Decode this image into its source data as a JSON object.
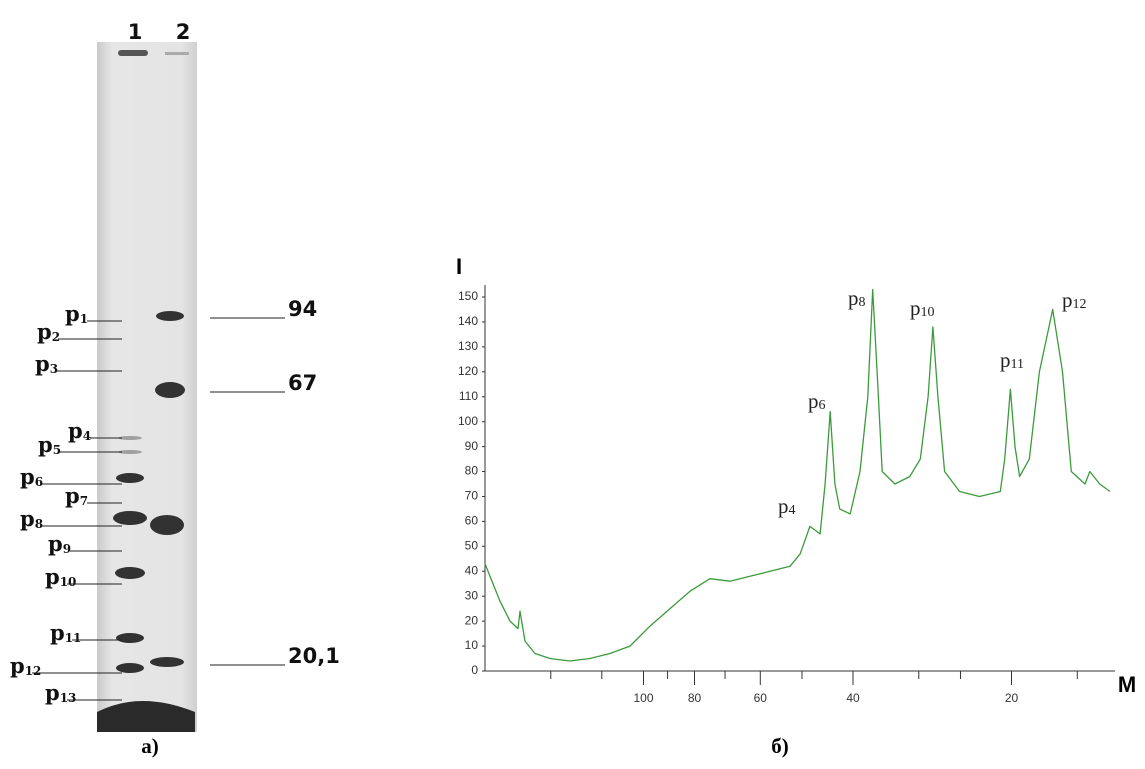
{
  "gel": {
    "lane_labels": [
      "1",
      "2"
    ],
    "band_labels": [
      {
        "letter": "p",
        "index": "1"
      },
      {
        "letter": "p",
        "index": "2"
      },
      {
        "letter": "p",
        "index": "3"
      },
      {
        "letter": "p",
        "index": "4"
      },
      {
        "letter": "p",
        "index": "5"
      },
      {
        "letter": "p",
        "index": "6"
      },
      {
        "letter": "p",
        "index": "7"
      },
      {
        "letter": "p",
        "index": "8"
      },
      {
        "letter": "p",
        "index": "9"
      },
      {
        "letter": "p",
        "index": "10"
      },
      {
        "letter": "p",
        "index": "11"
      },
      {
        "letter": "p",
        "index": "12"
      },
      {
        "letter": "p",
        "index": "13"
      }
    ],
    "marker_labels": [
      "94",
      "67",
      "20,1"
    ],
    "caption": "а)"
  },
  "chart_data": {
    "type": "line",
    "y_label": "I",
    "x_label": "M",
    "caption": "б)",
    "log_x": true,
    "x": [
      200,
      187.3,
      179.3,
      173.1,
      171.6,
      167.9,
      160.7,
      150.5,
      137.9,
      126.4,
      115.8,
      106.1,
      97.2,
      89.1,
      81.6,
      74.8,
      68.5,
      62.8,
      57.5,
      52.7,
      50.4,
      48.3,
      46.2,
      45.2,
      44.2,
      43.3,
      42.4,
      40.5,
      38.8,
      37.5,
      36.7,
      36.0,
      35.2,
      33.3,
      31.2,
      29.8,
      28.8,
      28.2,
      27.6,
      26.8,
      25.1,
      23.0,
      21.0,
      20.6,
      20.1,
      19.7,
      19.3,
      18.5,
      17.7,
      16.7,
      16.0,
      15.4,
      14.5,
      14.2,
      13.6,
      13.0
    ],
    "series": [
      {
        "color": "#3c9a3c",
        "values": [
          43,
          28,
          20,
          17,
          24,
          12,
          7,
          5,
          4,
          5,
          7,
          10,
          18,
          25,
          32,
          37,
          36,
          38,
          40,
          42,
          47,
          58,
          55,
          75,
          104,
          75,
          65,
          63,
          80,
          110,
          153,
          120,
          80,
          75,
          78,
          85,
          110,
          138,
          110,
          80,
          72,
          70,
          72,
          85,
          113,
          90,
          78,
          85,
          120,
          145,
          120,
          80,
          75,
          80,
          75,
          72
        ]
      }
    ],
    "xlim": [
      200,
      13
    ],
    "ylim": [
      0,
      150
    ],
    "xticks": [
      100,
      80,
      60,
      40,
      20
    ],
    "minor_xticks": [
      150,
      120,
      90,
      70,
      50,
      30,
      25,
      15
    ],
    "yticks": [
      0,
      10,
      20,
      30,
      40,
      50,
      60,
      70,
      80,
      90,
      100,
      110,
      120,
      130,
      140,
      150
    ],
    "peak_labels": [
      {
        "letter": "p",
        "index": "4"
      },
      {
        "letter": "p",
        "index": "6"
      },
      {
        "letter": "p",
        "index": "8"
      },
      {
        "letter": "p",
        "index": "10"
      },
      {
        "letter": "p",
        "index": "11"
      },
      {
        "letter": "p",
        "index": "12"
      }
    ]
  }
}
